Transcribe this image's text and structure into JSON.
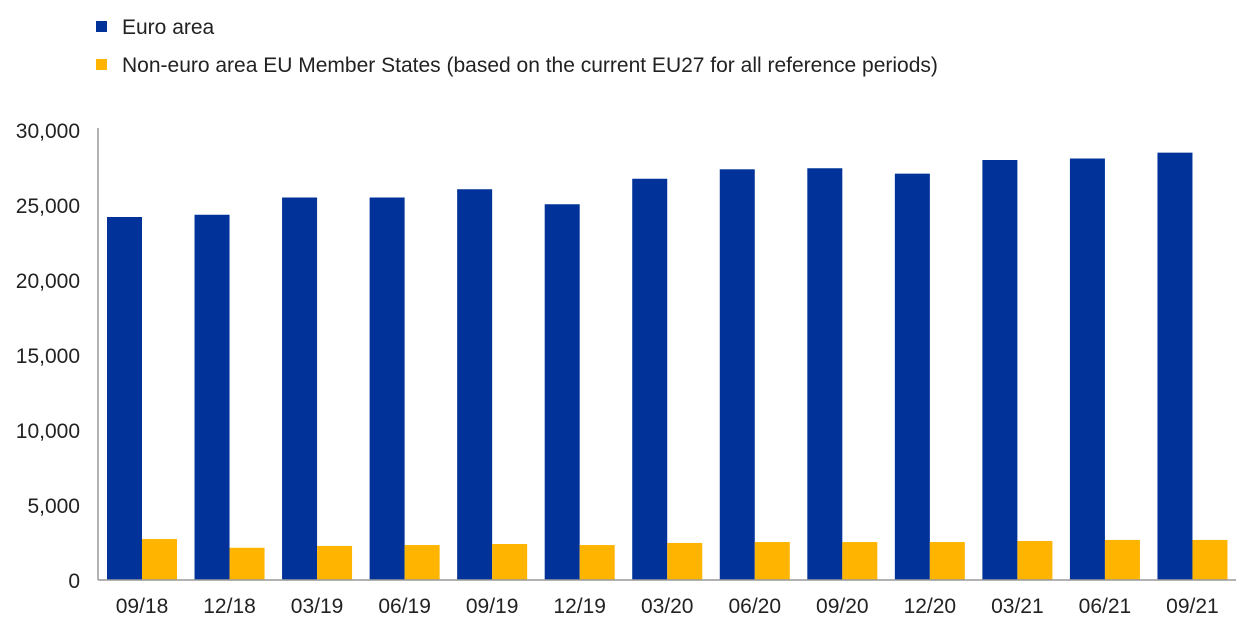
{
  "chart_data": {
    "type": "bar",
    "title": "",
    "xlabel": "",
    "ylabel": "",
    "ylim": [
      0,
      30000
    ],
    "yticks": [
      "0",
      "5,000",
      "10,000",
      "15,000",
      "20,000",
      "25,000",
      "30,000"
    ],
    "ytick_values": [
      0,
      5000,
      10000,
      15000,
      20000,
      25000,
      30000
    ],
    "grid": false,
    "legend_position": "top-left",
    "categories": [
      "09/18",
      "12/18",
      "03/19",
      "06/19",
      "09/19",
      "12/19",
      "03/20",
      "06/20",
      "09/20",
      "12/20",
      "03/21",
      "06/21",
      "09/21"
    ],
    "series": [
      {
        "name": "Euro area",
        "color": "#003299",
        "values": [
          24200,
          24350,
          25500,
          25500,
          26050,
          25050,
          26750,
          27380,
          27450,
          27090,
          28000,
          28100,
          28490
        ]
      },
      {
        "name": "Non-euro area EU Member States (based on the current EU27 for all reference periods)",
        "color": "#FFB400",
        "values": [
          2730,
          2150,
          2270,
          2330,
          2400,
          2330,
          2470,
          2530,
          2530,
          2530,
          2600,
          2670,
          2670
        ]
      }
    ]
  }
}
